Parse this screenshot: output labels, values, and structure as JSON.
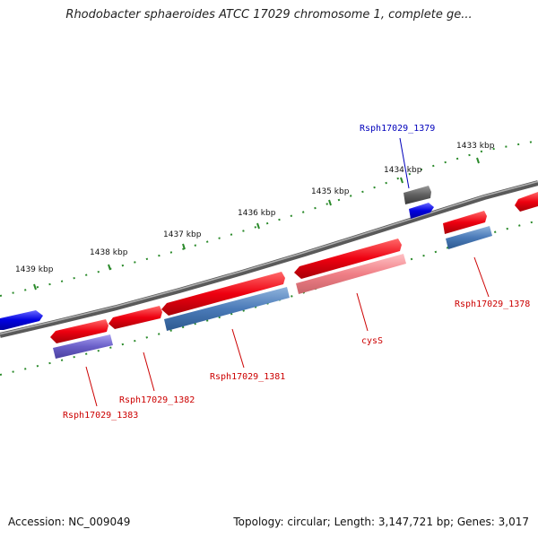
{
  "title": "Rhodobacter sphaeroides ATCC 17029 chromosome 1, complete ge...",
  "footer": {
    "accession": "Accession: NC_009049",
    "summary": "Topology: circular; Length: 3,147,721 bp; Genes: 3,017"
  },
  "ruler_ticks": [
    "1433 kbp",
    "1434 kbp",
    "1435 kbp",
    "1436 kbp",
    "1437 kbp",
    "1438 kbp",
    "1439 kbp"
  ],
  "gene_labels": {
    "rsph1379": "Rsph17029_1379",
    "rsph1378": "Rsph17029_1378",
    "cysS": "cysS",
    "rsph1381": "Rsph17029_1381",
    "rsph1382": "Rsph17029_1382",
    "rsph1383": "Rsph17029_1383"
  },
  "colors": {
    "backbone": "#7a7a7a",
    "cds_red": "#e8000b",
    "cds_pink": "#f07f86",
    "cds_blue": "#4a7ab8",
    "cds_purple": "#6a5fc8",
    "cds_gray": "#5f5f5f",
    "cds_bright_blue": "#0000e0",
    "tick_green": "#2a8a2a",
    "label_red": "#cc0000",
    "label_blue": "#0000bb"
  }
}
